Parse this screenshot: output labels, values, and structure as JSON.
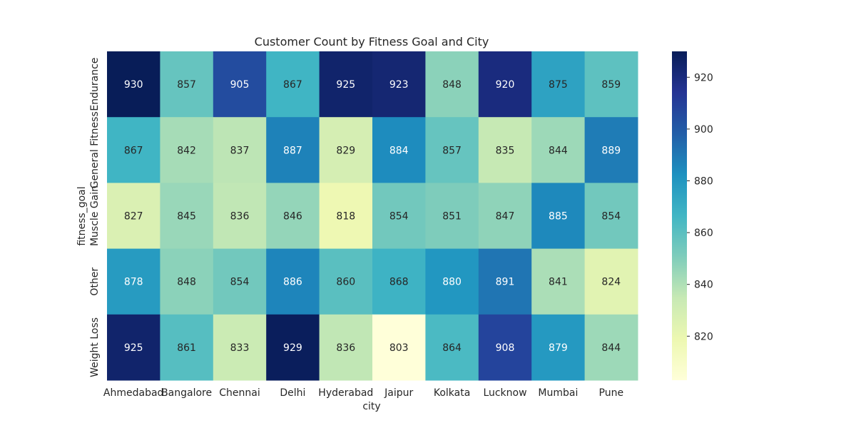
{
  "chart_data": {
    "type": "heatmap",
    "title": "Customer Count by Fitness Goal and City",
    "xlabel": "city",
    "ylabel": "fitness_goal",
    "x_categories": [
      "Ahmedabad",
      "Bangalore",
      "Chennai",
      "Delhi",
      "Hyderabad",
      "Jaipur",
      "Kolkata",
      "Lucknow",
      "Mumbai",
      "Pune"
    ],
    "y_categories": [
      "Endurance",
      "General Fitness",
      "Muscle Gain",
      "Other",
      "Weight Loss"
    ],
    "values": [
      [
        930,
        857,
        905,
        867,
        925,
        923,
        848,
        920,
        875,
        859
      ],
      [
        867,
        842,
        837,
        887,
        829,
        884,
        857,
        835,
        844,
        889
      ],
      [
        827,
        845,
        836,
        846,
        818,
        854,
        851,
        847,
        885,
        854
      ],
      [
        878,
        848,
        854,
        886,
        860,
        868,
        880,
        891,
        841,
        824
      ],
      [
        925,
        861,
        833,
        929,
        836,
        803,
        864,
        908,
        879,
        844
      ]
    ],
    "colorbar": {
      "min": 803,
      "max": 930,
      "ticks": [
        820,
        840,
        860,
        880,
        900,
        920
      ]
    },
    "colormap": "YlGnBu",
    "colormap_stops": [
      "#ffffd9",
      "#edf8b1",
      "#c7e9b4",
      "#7fcdbb",
      "#41b6c4",
      "#1d91c0",
      "#225ea8",
      "#253494",
      "#081d58"
    ]
  }
}
